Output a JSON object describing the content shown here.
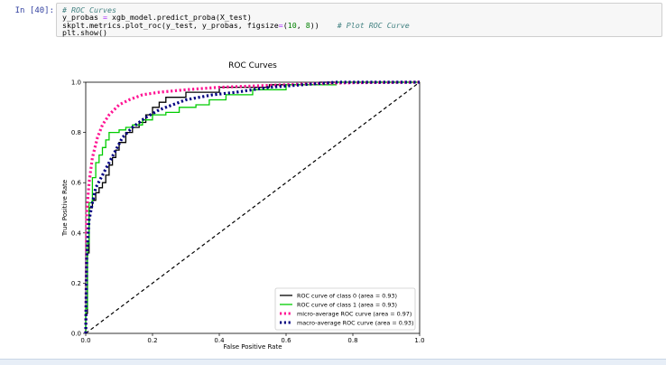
{
  "cell": {
    "prompt": "In [40]:",
    "code_lines": [
      {
        "parts": [
          {
            "t": "# ROC Curves",
            "c": "comment"
          }
        ]
      },
      {
        "parts": [
          {
            "t": "y_probas ",
            "c": "plain"
          },
          {
            "t": "=",
            "c": "op"
          },
          {
            "t": " xgb_model.predict_proba(X_test)",
            "c": "plain"
          }
        ]
      },
      {
        "parts": [
          {
            "t": "skplt.metrics.plot_roc(y_test, y_probas, figsize",
            "c": "plain"
          },
          {
            "t": "=",
            "c": "op"
          },
          {
            "t": "(",
            "c": "plain"
          },
          {
            "t": "10",
            "c": "num"
          },
          {
            "t": ", ",
            "c": "plain"
          },
          {
            "t": "8",
            "c": "num"
          },
          {
            "t": "))    ",
            "c": "plain"
          },
          {
            "t": "# Plot ROC Curve",
            "c": "comment"
          }
        ]
      },
      {
        "parts": [
          {
            "t": "plt.show()",
            "c": "plain"
          }
        ]
      }
    ]
  },
  "colors": {
    "class0": "#000000",
    "class1": "#00cc00",
    "micro": "#ff1493",
    "macro": "#000080",
    "diagonal": "#000000"
  },
  "chart_data": {
    "type": "line",
    "title": "ROC Curves",
    "xlabel": "False Positive Rate",
    "ylabel": "True Positive Rate",
    "xlim": [
      0.0,
      1.0
    ],
    "ylim": [
      0.0,
      1.0
    ],
    "xticks": [
      "0.0",
      "0.2",
      "0.4",
      "0.6",
      "0.8",
      "1.0"
    ],
    "yticks": [
      "0.0",
      "0.2",
      "0.4",
      "0.6",
      "0.8",
      "1.0"
    ],
    "grid": false,
    "legend_position": "lower-right",
    "series": [
      {
        "name": "ROC curve of class 0 (area = 0.93)",
        "style": "solid",
        "color": "#000000",
        "points": [
          [
            0,
            0
          ],
          [
            0,
            0.08
          ],
          [
            0.005,
            0.08
          ],
          [
            0.005,
            0.32
          ],
          [
            0.01,
            0.32
          ],
          [
            0.01,
            0.5
          ],
          [
            0.02,
            0.5
          ],
          [
            0.02,
            0.53
          ],
          [
            0.03,
            0.53
          ],
          [
            0.03,
            0.56
          ],
          [
            0.04,
            0.56
          ],
          [
            0.04,
            0.58
          ],
          [
            0.05,
            0.58
          ],
          [
            0.05,
            0.6
          ],
          [
            0.06,
            0.6
          ],
          [
            0.06,
            0.63
          ],
          [
            0.07,
            0.63
          ],
          [
            0.07,
            0.67
          ],
          [
            0.08,
            0.67
          ],
          [
            0.08,
            0.7
          ],
          [
            0.09,
            0.7
          ],
          [
            0.09,
            0.73
          ],
          [
            0.1,
            0.73
          ],
          [
            0.1,
            0.76
          ],
          [
            0.12,
            0.76
          ],
          [
            0.12,
            0.8
          ],
          [
            0.14,
            0.8
          ],
          [
            0.14,
            0.82
          ],
          [
            0.16,
            0.82
          ],
          [
            0.16,
            0.84
          ],
          [
            0.18,
            0.84
          ],
          [
            0.18,
            0.87
          ],
          [
            0.2,
            0.87
          ],
          [
            0.2,
            0.9
          ],
          [
            0.22,
            0.9
          ],
          [
            0.22,
            0.92
          ],
          [
            0.24,
            0.92
          ],
          [
            0.24,
            0.94
          ],
          [
            0.3,
            0.94
          ],
          [
            0.3,
            0.96
          ],
          [
            0.4,
            0.96
          ],
          [
            0.4,
            0.98
          ],
          [
            0.55,
            0.98
          ],
          [
            0.55,
            0.99
          ],
          [
            0.7,
            0.99
          ],
          [
            0.7,
            1.0
          ],
          [
            1.0,
            1.0
          ]
        ]
      },
      {
        "name": "ROC curve of class 1 (area = 0.93)",
        "style": "solid",
        "color": "#00cc00",
        "points": [
          [
            0,
            0
          ],
          [
            0,
            0.1
          ],
          [
            0.005,
            0.1
          ],
          [
            0.005,
            0.36
          ],
          [
            0.01,
            0.36
          ],
          [
            0.01,
            0.52
          ],
          [
            0.02,
            0.52
          ],
          [
            0.02,
            0.62
          ],
          [
            0.03,
            0.62
          ],
          [
            0.03,
            0.68
          ],
          [
            0.04,
            0.68
          ],
          [
            0.04,
            0.71
          ],
          [
            0.05,
            0.71
          ],
          [
            0.05,
            0.74
          ],
          [
            0.06,
            0.74
          ],
          [
            0.06,
            0.77
          ],
          [
            0.07,
            0.77
          ],
          [
            0.07,
            0.8
          ],
          [
            0.1,
            0.8
          ],
          [
            0.1,
            0.81
          ],
          [
            0.12,
            0.81
          ],
          [
            0.12,
            0.82
          ],
          [
            0.14,
            0.82
          ],
          [
            0.14,
            0.83
          ],
          [
            0.17,
            0.83
          ],
          [
            0.17,
            0.85
          ],
          [
            0.2,
            0.85
          ],
          [
            0.2,
            0.87
          ],
          [
            0.24,
            0.87
          ],
          [
            0.24,
            0.88
          ],
          [
            0.28,
            0.88
          ],
          [
            0.28,
            0.9
          ],
          [
            0.33,
            0.9
          ],
          [
            0.33,
            0.91
          ],
          [
            0.37,
            0.91
          ],
          [
            0.37,
            0.93
          ],
          [
            0.42,
            0.93
          ],
          [
            0.42,
            0.95
          ],
          [
            0.5,
            0.95
          ],
          [
            0.5,
            0.97
          ],
          [
            0.6,
            0.97
          ],
          [
            0.6,
            0.99
          ],
          [
            0.75,
            0.99
          ],
          [
            0.75,
            1.0
          ],
          [
            1.0,
            1.0
          ]
        ]
      },
      {
        "name": "micro-average ROC curve (area = 0.97)",
        "style": "dotted",
        "color": "#ff1493",
        "points": [
          [
            0,
            0
          ],
          [
            0.003,
            0.48
          ],
          [
            0.01,
            0.6
          ],
          [
            0.02,
            0.7
          ],
          [
            0.035,
            0.78
          ],
          [
            0.05,
            0.83
          ],
          [
            0.07,
            0.87
          ],
          [
            0.1,
            0.91
          ],
          [
            0.13,
            0.93
          ],
          [
            0.17,
            0.95
          ],
          [
            0.22,
            0.96
          ],
          [
            0.3,
            0.97
          ],
          [
            0.4,
            0.98
          ],
          [
            0.5,
            0.985
          ],
          [
            0.6,
            0.99
          ],
          [
            0.7,
            0.995
          ],
          [
            0.8,
            0.998
          ],
          [
            1.0,
            1.0
          ]
        ]
      },
      {
        "name": "macro-average ROC curve (area = 0.93)",
        "style": "dotted",
        "color": "#000080",
        "points": [
          [
            0,
            0
          ],
          [
            0.003,
            0.3
          ],
          [
            0.01,
            0.45
          ],
          [
            0.02,
            0.52
          ],
          [
            0.03,
            0.58
          ],
          [
            0.05,
            0.63
          ],
          [
            0.07,
            0.68
          ],
          [
            0.09,
            0.73
          ],
          [
            0.11,
            0.78
          ],
          [
            0.14,
            0.82
          ],
          [
            0.18,
            0.86
          ],
          [
            0.22,
            0.89
          ],
          [
            0.26,
            0.91
          ],
          [
            0.3,
            0.93
          ],
          [
            0.38,
            0.95
          ],
          [
            0.45,
            0.96
          ],
          [
            0.55,
            0.98
          ],
          [
            0.65,
            0.99
          ],
          [
            0.75,
            1.0
          ],
          [
            1.0,
            1.0
          ]
        ]
      }
    ]
  }
}
